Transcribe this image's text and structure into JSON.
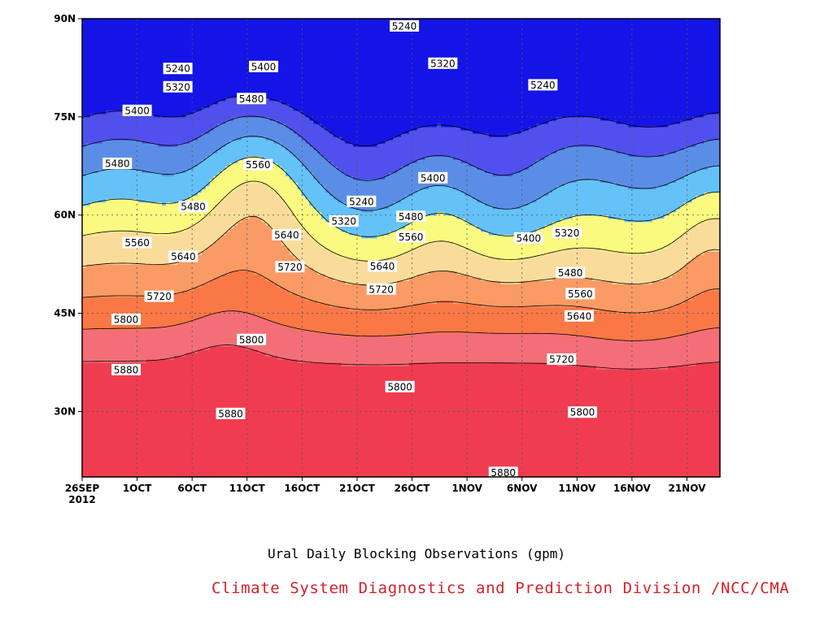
{
  "chart_data": {
    "type": "contour",
    "title": "Ural Daily Blocking Observations (gpm)",
    "credit": "Climate System Diagnostics and Prediction Division /NCC/CMA",
    "credit_color": "#d4202a",
    "x_tick_labels": [
      "26SEP",
      "1OCT",
      "6OCT",
      "11OCT",
      "16OCT",
      "21OCT",
      "26OCT",
      "1NOV",
      "6NOV",
      "11NOV",
      "16NOV",
      "21NOV"
    ],
    "x_year_label": "2012",
    "x_range_days": [
      0,
      58
    ],
    "y_tick_labels": [
      "90N",
      "75N",
      "60N",
      "45N",
      "30N"
    ],
    "y_tick_values": [
      90,
      75,
      60,
      45,
      30
    ],
    "ylim": [
      20,
      90
    ],
    "grid": true,
    "levels": [
      5240,
      5320,
      5400,
      5480,
      5560,
      5640,
      5720,
      5800,
      5880
    ],
    "fill_colors": [
      "#0c0c6e",
      "#1414e6",
      "#5050ee",
      "#5a8ee6",
      "#64c2f8",
      "#fafa80",
      "#fadc9a",
      "#fa9a64",
      "#fa7846",
      "#f46e78",
      "#f03c50"
    ],
    "contour_labels": [
      {
        "text": "5240",
        "day": 29.3,
        "lat": 88.9
      },
      {
        "text": "5240",
        "day": 8.7,
        "lat": 82.4
      },
      {
        "text": "5320",
        "day": 8.7,
        "lat": 79.6
      },
      {
        "text": "5400",
        "day": 16.5,
        "lat": 82.7
      },
      {
        "text": "5400",
        "day": 5.0,
        "lat": 76.0
      },
      {
        "text": "5480",
        "day": 15.4,
        "lat": 77.8
      },
      {
        "text": "5320",
        "day": 32.8,
        "lat": 83.2
      },
      {
        "text": "5240",
        "day": 41.9,
        "lat": 79.9
      },
      {
        "text": "5480",
        "day": 3.2,
        "lat": 67.9
      },
      {
        "text": "5480",
        "day": 10.1,
        "lat": 61.3
      },
      {
        "text": "5560",
        "day": 16.0,
        "lat": 67.7
      },
      {
        "text": "5400",
        "day": 31.9,
        "lat": 65.7
      },
      {
        "text": "5240",
        "day": 25.4,
        "lat": 62.1
      },
      {
        "text": "5320",
        "day": 23.8,
        "lat": 59.1
      },
      {
        "text": "5480",
        "day": 29.9,
        "lat": 59.8
      },
      {
        "text": "5560",
        "day": 29.9,
        "lat": 56.7
      },
      {
        "text": "5640",
        "day": 18.6,
        "lat": 57.0
      },
      {
        "text": "5560",
        "day": 5.0,
        "lat": 55.8
      },
      {
        "text": "5640",
        "day": 9.2,
        "lat": 53.7
      },
      {
        "text": "5640",
        "day": 27.3,
        "lat": 52.2
      },
      {
        "text": "5400",
        "day": 40.6,
        "lat": 56.5
      },
      {
        "text": "5320",
        "day": 44.1,
        "lat": 57.3
      },
      {
        "text": "5720",
        "day": 18.9,
        "lat": 52.1
      },
      {
        "text": "5720",
        "day": 7.0,
        "lat": 47.6
      },
      {
        "text": "5720",
        "day": 27.2,
        "lat": 48.7
      },
      {
        "text": "5480",
        "day": 44.4,
        "lat": 51.2
      },
      {
        "text": "5560",
        "day": 45.3,
        "lat": 48.0
      },
      {
        "text": "5640",
        "day": 45.2,
        "lat": 44.6
      },
      {
        "text": "5800",
        "day": 4.0,
        "lat": 44.1
      },
      {
        "text": "5800",
        "day": 15.4,
        "lat": 41.0
      },
      {
        "text": "5720",
        "day": 43.6,
        "lat": 38.0
      },
      {
        "text": "5800",
        "day": 28.9,
        "lat": 33.8
      },
      {
        "text": "5880",
        "day": 4.0,
        "lat": 36.4
      },
      {
        "text": "5880",
        "day": 13.5,
        "lat": 29.7
      },
      {
        "text": "5800",
        "day": 45.5,
        "lat": 29.9
      },
      {
        "text": "5880",
        "day": 38.3,
        "lat": 20.7
      }
    ]
  }
}
